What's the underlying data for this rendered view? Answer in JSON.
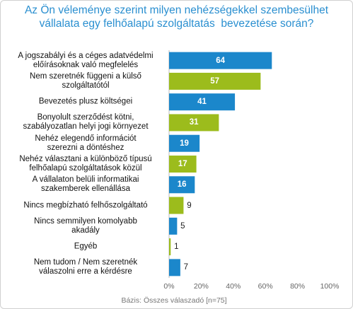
{
  "chart_data": {
    "type": "bar",
    "orientation": "horizontal",
    "title": "Az Ön véleménye szerint milyen nehézségekkel szembesülhet\nvállalata egy felhőalapú szolgáltatás  bevezetése során?",
    "categories": [
      "A jogszabályi és a céges adatvédelmi\nelőírásoknak való megfelelés",
      "Nem szeretnék függeni a külső\nszolgáltatótól",
      "Bevezetés plusz költségei",
      "Bonyolult szerződést kötni,\nszabályozatlan helyi jogi környezet",
      "Nehéz elegendő információt\nszerezni a döntéshez",
      "Nehéz választani a különböző típusú\nfelhőalapú szolgáltatások közül",
      "A vállalaton belüli informatikai\nszakemberek ellenállása",
      "Nincs megbízható felhőszolgáltató",
      "Nincs semmilyen komolyabb\nakadály",
      "Egyéb",
      "Nem tudom / Nem szeretnék\nválaszolni erre a kérdésre"
    ],
    "values": [
      64,
      57,
      41,
      31,
      19,
      17,
      16,
      9,
      5,
      1,
      7
    ],
    "colors": [
      "#1b87cb",
      "#9cbc1c",
      "#1b87cb",
      "#9cbc1c",
      "#1b87cb",
      "#9cbc1c",
      "#1b87cb",
      "#9cbc1c",
      "#1b87cb",
      "#9cbc1c",
      "#1b87cb"
    ],
    "xlim": [
      0,
      100
    ],
    "xticks": [
      {
        "value": 0,
        "label": "0%"
      },
      {
        "value": 20,
        "label": "20%"
      },
      {
        "value": 40,
        "label": "40%"
      },
      {
        "value": 60,
        "label": "60%"
      },
      {
        "value": 80,
        "label": "80%"
      },
      {
        "value": 100,
        "label": "100%"
      }
    ],
    "footnote": "Bázis: Összes válaszadó [n=75]"
  }
}
